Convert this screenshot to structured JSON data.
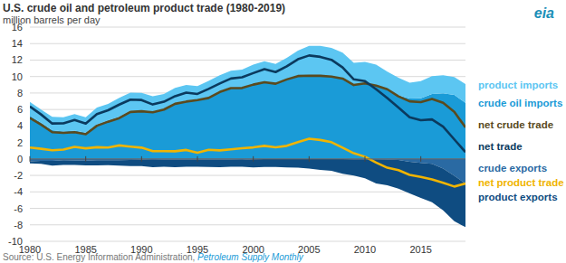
{
  "chart_data": {
    "type": "area",
    "title": "U.S. crude oil and petroleum product trade (1980-2019)",
    "subtitle": "million barrels per day",
    "source": "Source: U.S. Energy Information Administration, ",
    "source_link": "Petroleum Supply Monthly",
    "logo": "eia",
    "stacked": true,
    "grid": true,
    "x": [
      1980,
      1981,
      1982,
      1983,
      1984,
      1985,
      1986,
      1987,
      1988,
      1989,
      1990,
      1991,
      1992,
      1993,
      1994,
      1995,
      1996,
      1997,
      1998,
      1999,
      2000,
      2001,
      2002,
      2003,
      2004,
      2005,
      2006,
      2007,
      2008,
      2009,
      2010,
      2011,
      2012,
      2013,
      2014,
      2015,
      2016,
      2017,
      2018,
      2019
    ],
    "xlim": [
      1980,
      2019
    ],
    "xticks": [
      1980,
      1985,
      1990,
      1995,
      2000,
      2005,
      2010,
      2015
    ],
    "ylim": [
      -10,
      16
    ],
    "yticks": [
      -10,
      -8,
      -6,
      -4,
      -2,
      0,
      2,
      4,
      6,
      8,
      10,
      12,
      14,
      16
    ],
    "series": [
      {
        "name": "crude oil imports",
        "type": "area",
        "color": "#1a9bd7",
        "values": [
          5.26,
          4.4,
          3.49,
          3.33,
          3.43,
          3.2,
          4.18,
          4.67,
          5.11,
          5.84,
          5.89,
          5.78,
          6.08,
          6.79,
          7.06,
          7.23,
          7.51,
          8.23,
          8.71,
          8.73,
          9.07,
          9.33,
          9.14,
          9.66,
          10.09,
          10.13,
          10.12,
          10.03,
          9.78,
          9.01,
          9.21,
          8.94,
          8.53,
          7.73,
          7.34,
          7.36,
          7.88,
          7.97,
          7.77,
          6.8
        ]
      },
      {
        "name": "product imports",
        "type": "area",
        "color": "#5cc6f2",
        "values": [
          1.65,
          1.6,
          1.63,
          1.72,
          2.01,
          1.87,
          2.05,
          2.0,
          2.3,
          2.22,
          2.12,
          1.84,
          1.81,
          1.83,
          1.93,
          1.61,
          1.97,
          1.94,
          2.0,
          2.12,
          2.39,
          2.54,
          2.39,
          2.6,
          3.06,
          3.59,
          3.59,
          3.44,
          3.13,
          2.67,
          2.58,
          2.5,
          2.07,
          2.13,
          1.9,
          2.08,
          2.18,
          2.18,
          2.17,
          2.3
        ]
      },
      {
        "name": "crude exports",
        "type": "area",
        "color": "#2a6aa3",
        "values": [
          -0.29,
          -0.23,
          -0.24,
          -0.16,
          -0.18,
          -0.2,
          -0.15,
          -0.15,
          -0.16,
          -0.14,
          -0.11,
          -0.12,
          -0.09,
          -0.1,
          -0.1,
          -0.09,
          -0.11,
          -0.11,
          -0.11,
          -0.12,
          -0.05,
          -0.02,
          -0.01,
          -0.01,
          -0.03,
          -0.03,
          -0.03,
          -0.03,
          -0.03,
          -0.04,
          -0.04,
          -0.05,
          -0.07,
          -0.13,
          -0.35,
          -0.47,
          -0.59,
          -1.16,
          -2.05,
          -2.98
        ]
      },
      {
        "name": "product exports",
        "type": "area",
        "color": "#0f4c81",
        "values": [
          -0.26,
          -0.37,
          -0.58,
          -0.58,
          -0.54,
          -0.58,
          -0.63,
          -0.61,
          -0.66,
          -0.72,
          -0.75,
          -0.89,
          -0.86,
          -0.9,
          -0.84,
          -0.86,
          -0.87,
          -0.9,
          -0.84,
          -0.82,
          -0.99,
          -0.95,
          -0.98,
          -1.01,
          -1.02,
          -1.13,
          -1.29,
          -1.41,
          -1.77,
          -1.98,
          -2.31,
          -2.94,
          -3.14,
          -3.49,
          -3.83,
          -4.27,
          -4.67,
          -5.07,
          -5.52,
          -5.29
        ]
      },
      {
        "name": "net crude trade",
        "type": "line",
        "color": "#5a4a1e",
        "values": [
          4.97,
          4.17,
          3.25,
          3.17,
          3.25,
          3.0,
          4.03,
          4.52,
          4.95,
          5.7,
          5.78,
          5.66,
          5.99,
          6.69,
          6.96,
          7.14,
          7.4,
          8.12,
          8.6,
          8.61,
          9.02,
          9.31,
          9.13,
          9.65,
          10.06,
          10.1,
          10.09,
          10.0,
          9.75,
          8.97,
          9.17,
          8.89,
          8.46,
          7.6,
          6.99,
          6.89,
          7.29,
          6.81,
          5.72,
          3.82
        ]
      },
      {
        "name": "net trade",
        "type": "line",
        "color": "#0b3a5e",
        "values": [
          6.36,
          5.4,
          4.3,
          4.31,
          4.72,
          4.29,
          5.45,
          5.91,
          6.59,
          7.2,
          7.15,
          6.61,
          6.94,
          7.62,
          8.05,
          7.89,
          8.5,
          9.16,
          9.76,
          9.91,
          10.42,
          10.9,
          10.54,
          11.24,
          12.1,
          12.56,
          12.39,
          12.03,
          11.11,
          9.66,
          9.44,
          8.45,
          7.39,
          6.24,
          5.06,
          4.7,
          4.8,
          3.92,
          2.37,
          0.83
        ]
      },
      {
        "name": "net product trade",
        "type": "line",
        "color": "#f0b400",
        "values": [
          1.39,
          1.23,
          1.05,
          1.14,
          1.47,
          1.29,
          1.42,
          1.39,
          1.64,
          1.5,
          1.37,
          0.95,
          0.95,
          0.93,
          1.09,
          0.75,
          1.1,
          1.04,
          1.16,
          1.3,
          1.4,
          1.59,
          1.41,
          1.59,
          2.04,
          2.46,
          2.3,
          2.03,
          1.36,
          0.69,
          0.27,
          -0.44,
          -1.07,
          -1.36,
          -1.93,
          -2.19,
          -2.49,
          -2.89,
          -3.35,
          -2.99
        ]
      }
    ]
  }
}
